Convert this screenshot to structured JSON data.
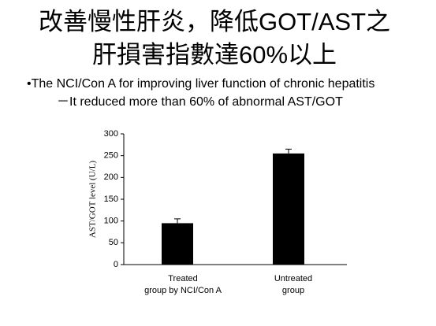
{
  "header": {
    "title": [
      "改善慢性肝炎，降低GOT/AST之",
      "肝損害指數達60%以上"
    ]
  },
  "bullets": [
    "•The NCI/Con A for improving liver function of chronic hepatitis",
    "－It reduced more than 60% of abnormal AST/GOT"
  ],
  "chart_data": {
    "type": "bar",
    "y_label": "AST/GOT level (U/L)",
    "categories": [
      [
        "Treated",
        "group by NCI/Con A"
      ],
      [
        "Untreated",
        "group"
      ]
    ],
    "values": [
      95,
      255
    ],
    "errors": [
      10,
      10
    ],
    "color": "#000000",
    "ylim": [
      0,
      300
    ],
    "yticks": [
      0,
      50,
      100,
      150,
      200,
      250,
      300
    ],
    "grid": false
  }
}
